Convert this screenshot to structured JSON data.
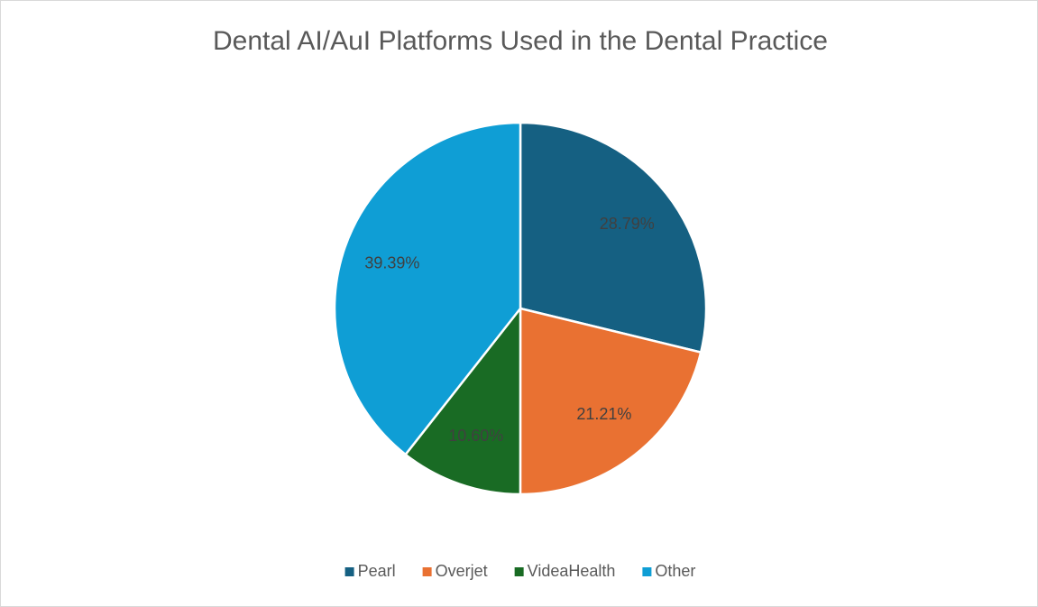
{
  "chart_data": {
    "type": "pie",
    "title": "Dental AI/AuI Platforms Used in the Dental Practice",
    "categories": [
      "Pearl",
      "Overjet",
      "VideaHealth",
      "Other"
    ],
    "values": [
      28.79,
      21.21,
      10.6,
      39.39
    ],
    "value_labels": [
      "28.79%",
      "21.21%",
      "10.60%",
      "39.39%"
    ],
    "colors": [
      "#156082",
      "#e97132",
      "#196b24",
      "#0f9ed5"
    ],
    "legend": "bottom"
  }
}
